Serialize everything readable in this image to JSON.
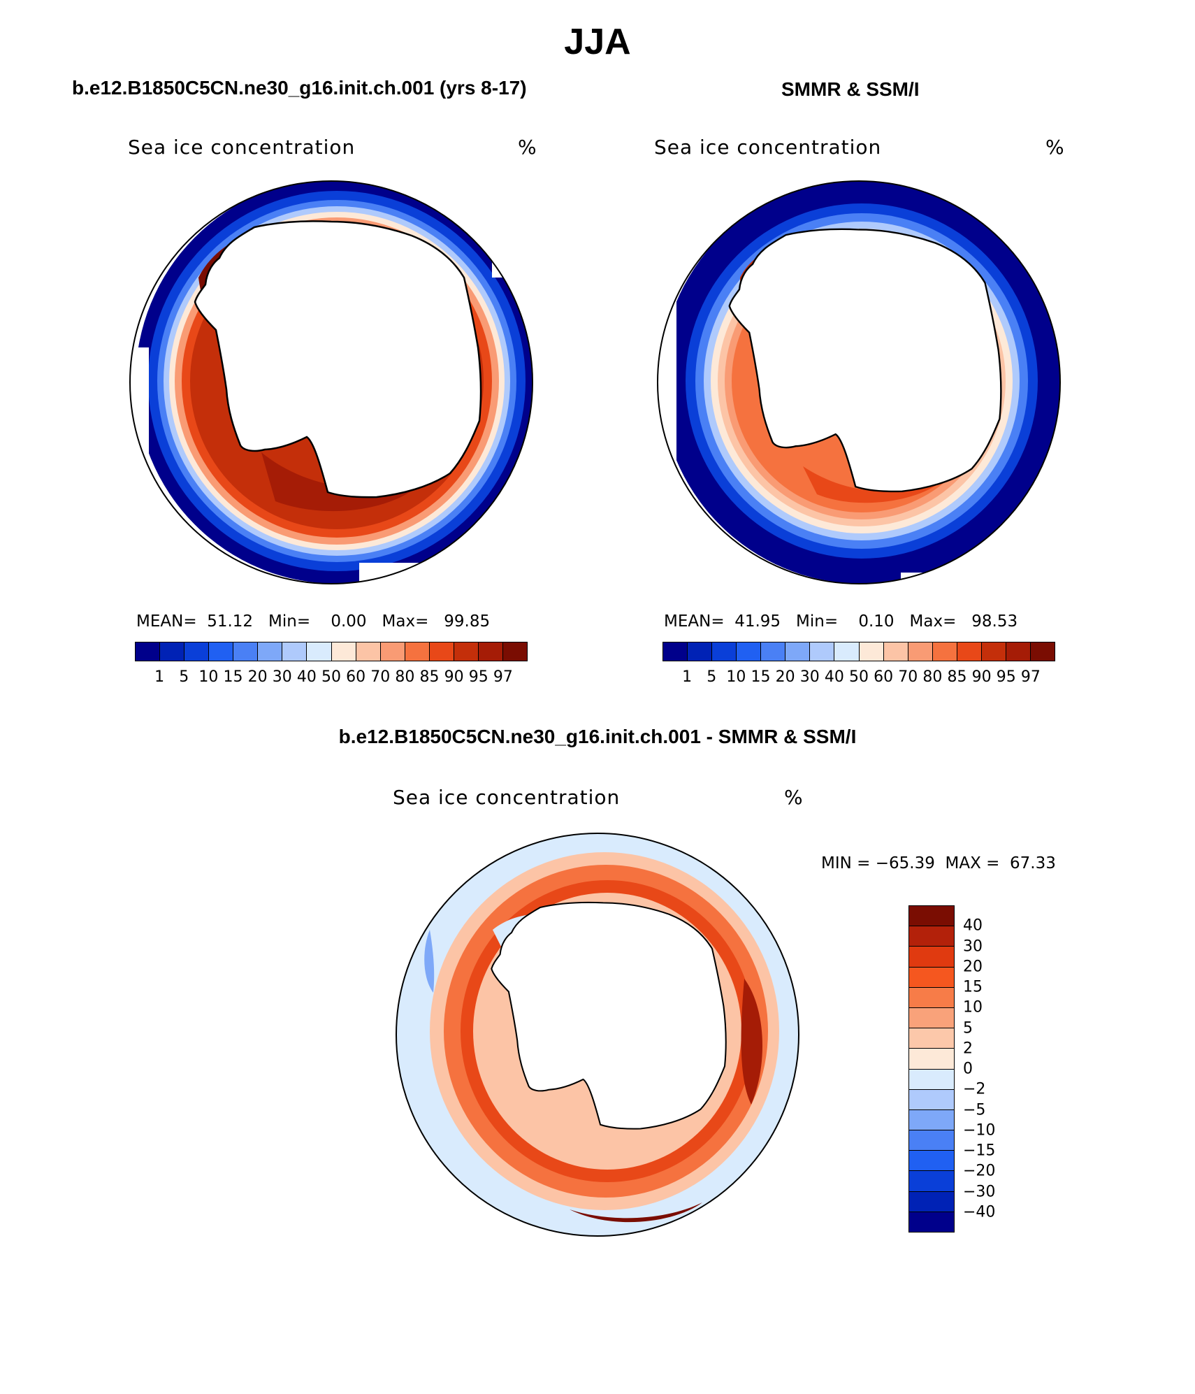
{
  "title": "JJA",
  "panels": {
    "model": {
      "header": "b.e12.B1850C5CN.ne30_g16.init.ch.001 (yrs 8-17)",
      "plot_title": "Sea ice concentration",
      "units": "%",
      "mean_label": "MEAN=",
      "mean": "51.12",
      "min_label": "Min=",
      "min": "0.00",
      "max_label": "Max=",
      "max": "99.85"
    },
    "obs": {
      "header": "SMMR & SSM/I",
      "plot_title": "Sea ice concentration",
      "units": "%",
      "mean_label": "MEAN=",
      "mean": "41.95",
      "min_label": "Min=",
      "min": "0.10",
      "max_label": "Max=",
      "max": "98.53"
    },
    "diff": {
      "header": "b.e12.B1850C5CN.ne30_g16.init.ch.001 - SMMR & SSM/I",
      "plot_title": "Sea ice concentration",
      "units": "%",
      "min_label": "MIN =",
      "min": "−65.39",
      "max_label": "MAX =",
      "max": "67.33"
    }
  },
  "colorbars": {
    "concentration": {
      "levels": [
        "1",
        "5",
        "10",
        "15",
        "20",
        "30",
        "40",
        "50",
        "60",
        "70",
        "80",
        "85",
        "90",
        "95",
        "97"
      ],
      "colors": [
        "#00008b",
        "#0022b5",
        "#0a3fd8",
        "#2060f2",
        "#4a80f5",
        "#7ea8f8",
        "#afcafc",
        "#d9ebfd",
        "#fde9d8",
        "#fcc4a6",
        "#f99b74",
        "#f5723f",
        "#e84818",
        "#c42f0a",
        "#a51c06",
        "#7a0d02"
      ]
    },
    "difference": {
      "levels": [
        "40",
        "30",
        "20",
        "15",
        "10",
        "5",
        "2",
        "0",
        "−2",
        "−5",
        "−10",
        "−15",
        "−20",
        "−30",
        "−40"
      ],
      "colors": [
        "#7a0d02",
        "#b3210a",
        "#e03a10",
        "#f5571f",
        "#f77c48",
        "#f9a27a",
        "#fcc8aa",
        "#fde9d8",
        "#d9ebfd",
        "#afcafc",
        "#7ea8f8",
        "#4a80f5",
        "#2060f2",
        "#0a3fd8",
        "#0022b5",
        "#00008b"
      ]
    }
  }
}
